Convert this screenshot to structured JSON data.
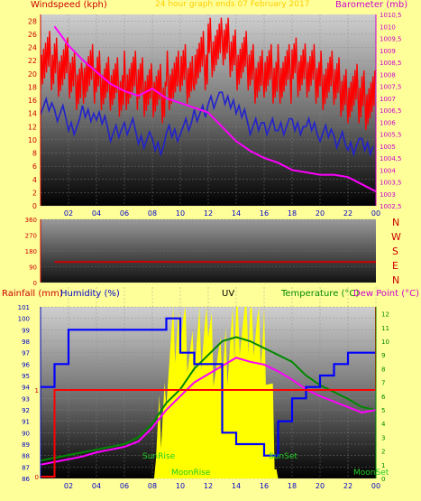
{
  "top": {
    "left_label": "Windspeed (kph)",
    "center_label": "24 hour graph ends 07 February 2017",
    "right_label": "Barometer (mb)",
    "left_ticks": [
      "0",
      "2",
      "4",
      "6",
      "8",
      "10",
      "12",
      "14",
      "16",
      "18",
      "20",
      "22",
      "24",
      "26",
      "28"
    ],
    "right_ticks": [
      "1002,5",
      "1003",
      "1003,5",
      "1004",
      "1004,5",
      "1005",
      "1005,5",
      "1006",
      "1006,5",
      "1007",
      "1007,5",
      "1008",
      "1008,5",
      "1009",
      "1009,5",
      "1010",
      "1010,5"
    ],
    "time_ticks": [
      "02",
      "04",
      "06",
      "08",
      "10",
      "12",
      "14",
      "16",
      "18",
      "20",
      "22",
      "00"
    ]
  },
  "middle": {
    "ticks": [
      "0",
      "90",
      "180",
      "270",
      "360"
    ],
    "compass": [
      "N",
      "W",
      "S",
      "E",
      "N"
    ]
  },
  "bottom": {
    "rainfall_label": "Rainfall (mm)",
    "humidity_label": "Humidity (%)",
    "uv_label": "UV",
    "temperature_label": "Temperature (°C)",
    "dewpoint_label": "Dew Point (°C)",
    "humidity_ticks": [
      "86",
      "87",
      "88",
      "89",
      "90",
      "91",
      "92",
      "93",
      "94",
      "95",
      "96",
      "97",
      "98",
      "99",
      "100",
      "101"
    ],
    "rain_ticks": [
      "0",
      "1"
    ],
    "right_ticks": [
      "0",
      "1",
      "2",
      "3",
      "4",
      "5",
      "6",
      "7",
      "8",
      "9",
      "10",
      "11",
      "12"
    ],
    "sunrise": "SunRise",
    "sunset": "SunSet",
    "moonrise": "MoonRise",
    "moonset": "MoonSet"
  },
  "colors": {
    "background": "#ffff99",
    "gust": "#ff0000",
    "wind": "#2222cc",
    "barometer": "#ff00ff",
    "humidity": "#0000ff",
    "uv": "#ffff00",
    "temperature": "#008800",
    "dewpoint": "#ff00ff",
    "rain": "#ff0000",
    "direction": "#cc0000",
    "axis_label": "#cc0000",
    "right_axis_label": "#008800"
  },
  "chart_data": [
    {
      "type": "line",
      "x": [
        "01",
        "02",
        "03",
        "04",
        "05",
        "06",
        "07",
        "08",
        "09",
        "10",
        "11",
        "12",
        "13",
        "14",
        "15",
        "16",
        "17",
        "18",
        "19",
        "20",
        "21",
        "22",
        "23",
        "00"
      ],
      "series": [
        {
          "name": "Windspeed",
          "values": [
            15,
            14,
            12,
            14,
            13,
            11,
            12,
            10,
            9,
            11,
            12,
            14,
            16,
            16,
            14,
            12,
            12,
            12,
            12,
            12,
            11,
            10,
            9,
            9
          ]
        },
        {
          "name": "Gust",
          "values": [
            22,
            21,
            19,
            20,
            19,
            18,
            19,
            18,
            17,
            19,
            20,
            22,
            24,
            24,
            22,
            20,
            20,
            20,
            21,
            20,
            19,
            18,
            17,
            16
          ]
        },
        {
          "name": "Barometer",
          "values": [
            1010.0,
            1009.2,
            1008.6,
            1008.1,
            1007.6,
            1007.3,
            1007.1,
            1007.4,
            1007.0,
            1006.8,
            1006.6,
            1006.4,
            1005.8,
            1005.2,
            1004.8,
            1004.5,
            1004.3,
            1004.0,
            1003.9,
            1003.8,
            1003.8,
            1003.7,
            1003.4,
            1003.1
          ]
        }
      ],
      "ylim_left": [
        0,
        29
      ],
      "ylim_right": [
        1002.5,
        1010.5
      ]
    },
    {
      "type": "line",
      "x": [
        "01",
        "02",
        "03",
        "04",
        "05",
        "06",
        "07",
        "08",
        "09",
        "10",
        "11",
        "12",
        "13",
        "14",
        "15",
        "16",
        "17",
        "18",
        "19",
        "20",
        "21",
        "22",
        "23",
        "00"
      ],
      "series": [
        {
          "name": "Wind direction",
          "values": [
            118,
            117,
            118,
            118,
            117,
            118,
            119,
            118,
            118,
            117,
            118,
            118,
            117,
            118,
            118,
            118,
            117,
            118,
            118,
            118,
            118,
            118,
            117,
            118
          ]
        }
      ],
      "ylim": [
        0,
        360
      ]
    },
    {
      "type": "line",
      "x": [
        "00",
        "01",
        "02",
        "03",
        "04",
        "05",
        "06",
        "07",
        "08",
        "09",
        "10",
        "11",
        "12",
        "13",
        "14",
        "15",
        "16",
        "17",
        "18",
        "19",
        "20",
        "21",
        "22",
        "23",
        "00"
      ],
      "series": [
        {
          "name": "Humidity",
          "values": [
            94,
            96,
            99,
            99,
            99,
            99,
            99,
            99,
            99,
            100,
            97,
            96,
            96,
            90,
            89,
            89,
            88,
            91,
            93,
            94,
            95,
            96,
            97,
            97,
            97
          ]
        },
        {
          "name": "UV",
          "values": [
            0,
            0,
            0,
            0,
            0,
            0,
            0,
            0,
            0,
            8,
            12,
            9,
            11,
            7,
            12,
            11,
            11,
            0,
            0,
            0,
            0,
            0,
            0,
            0,
            0
          ]
        },
        {
          "name": "Temperature",
          "values": [
            1.3,
            1.5,
            1.7,
            1.9,
            2.1,
            2.3,
            2.5,
            3.0,
            4.0,
            5.5,
            6.5,
            8.0,
            9.0,
            10.0,
            10.3,
            10.0,
            9.5,
            9.0,
            8.5,
            7.5,
            6.8,
            6.3,
            5.8,
            5.2,
            5.0
          ]
        },
        {
          "name": "Dew Point",
          "values": [
            1.0,
            1.2,
            1.4,
            1.6,
            1.9,
            2.1,
            2.3,
            2.7,
            3.7,
            5.0,
            6.0,
            7.0,
            7.6,
            8.2,
            8.8,
            8.5,
            8.3,
            7.8,
            7.2,
            6.5,
            6.0,
            5.6,
            5.2,
            4.8,
            5.0
          ]
        },
        {
          "name": "Rainfall",
          "values": [
            0,
            1,
            1,
            1,
            1,
            1,
            1,
            1,
            1,
            1,
            1,
            1,
            1,
            1,
            1,
            1,
            1,
            1,
            1,
            1,
            1,
            1,
            1,
            1,
            1
          ]
        }
      ],
      "ylim_left": [
        86,
        101
      ],
      "ylim_right": [
        0,
        12.5
      ]
    }
  ]
}
